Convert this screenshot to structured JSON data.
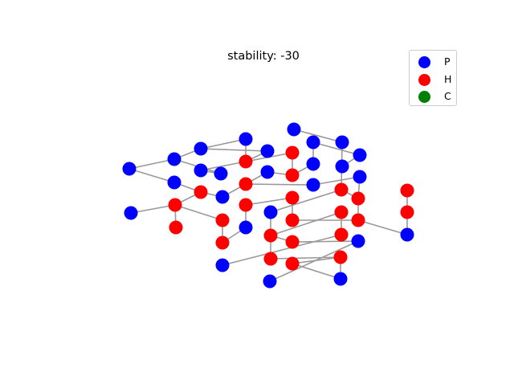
{
  "figure": {
    "title": "stability: -30"
  },
  "legend": {
    "entries": [
      {
        "label": "P",
        "color": "#0000ff"
      },
      {
        "label": "H",
        "color": "#ff0000"
      },
      {
        "label": "C",
        "color": "#008000"
      }
    ]
  },
  "colors": {
    "edge": "#999999",
    "P": "#0000ff",
    "H": "#ff0000",
    "C": "#008000"
  }
}
